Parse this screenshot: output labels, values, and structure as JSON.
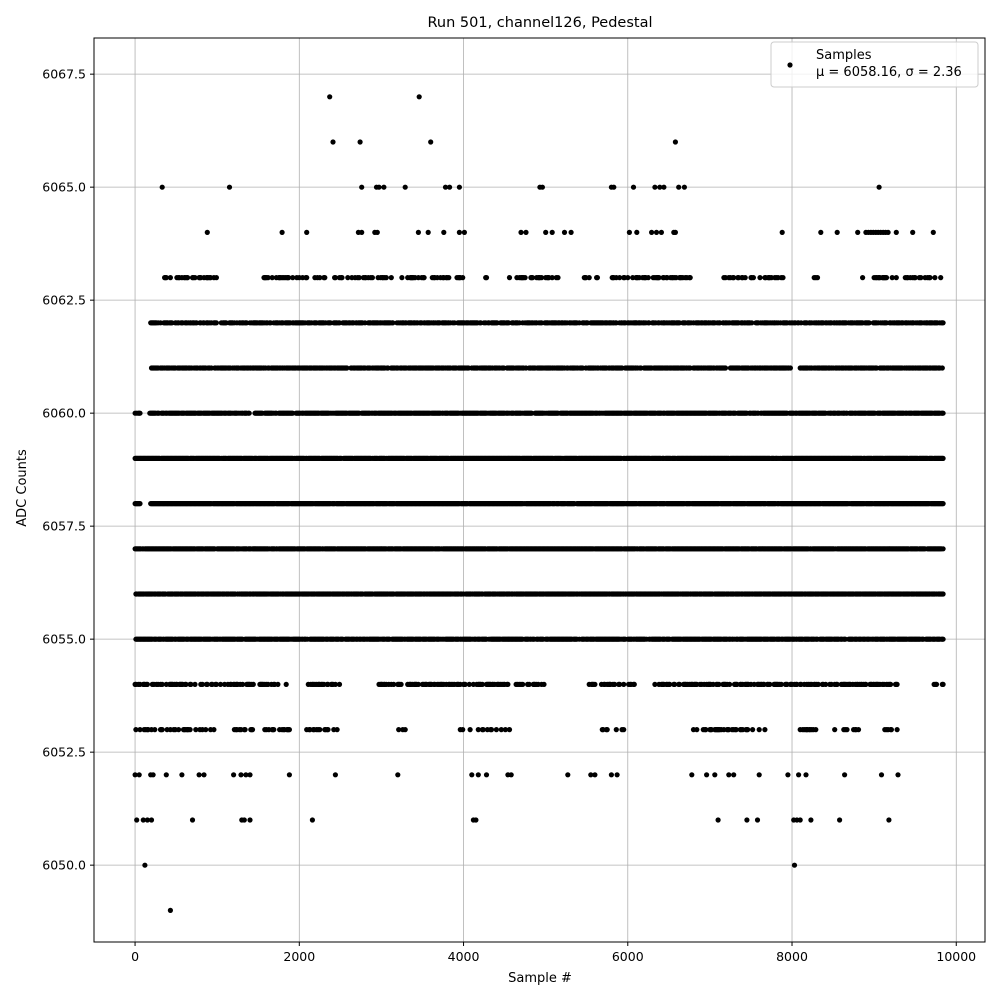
{
  "chart_data": {
    "type": "scatter",
    "title": "Run 501, channel126, Pedestal",
    "xlabel": "Sample #",
    "ylabel": "ADC Counts",
    "xlim": [
      -500,
      10350
    ],
    "ylim": [
      6048.3,
      6068.3
    ],
    "xticks": [
      0,
      2000,
      4000,
      6000,
      8000,
      10000
    ],
    "xtick_labels": [
      "0",
      "2000",
      "4000",
      "6000",
      "8000",
      "10000"
    ],
    "yticks": [
      6050.0,
      6052.5,
      6055.0,
      6057.5,
      6060.0,
      6062.5,
      6065.0,
      6067.5
    ],
    "ytick_labels": [
      "6050.0",
      "6052.5",
      "6055.0",
      "6057.5",
      "6060.0",
      "6062.5",
      "6065.0",
      "6067.5"
    ],
    "grid": true,
    "legend": {
      "placement": "top-right",
      "entries": [
        {
          "label_line1": "Samples",
          "label_line2": "μ = 6058.16, σ = 2.36"
        }
      ]
    },
    "colors": {
      "marker": "#000000",
      "grid": "#b0b0b0",
      "axes": "#000000"
    },
    "series": [
      {
        "name": "Samples",
        "levels": [
          {
            "y": 6049,
            "x": [
              430
            ]
          },
          {
            "y": 6050,
            "x": [
              120,
              8030
            ]
          },
          {
            "y": 6051,
            "x": [
              20,
              100,
              150,
              200,
              700,
              1300,
              1330,
              1400,
              2160,
              4120,
              4150,
              7100,
              7450,
              7580,
              8020,
              8060,
              8100,
              8230,
              8580,
              9180
            ]
          },
          {
            "y": 6052,
            "x": [
              0,
              50,
              190,
              220,
              380,
              570,
              780,
              840,
              1200,
              1290,
              1350,
              1400,
              1880,
              2440,
              3200,
              4100,
              4180,
              4280,
              4540,
              4580,
              5270,
              5550,
              5600,
              5800,
              5870,
              6780,
              6960,
              7060,
              7230,
              7290,
              7600,
              7950,
              8080,
              8170,
              8640,
              9090,
              9290
            ]
          }
        ],
        "bands": [
          {
            "y": 6053,
            "x_start": 0,
            "x_end": 2460,
            "density": 0.35,
            "gaps": [
              [
                1000,
                1180
              ],
              [
                1500,
                1550
              ],
              [
                1900,
                2050
              ]
            ]
          },
          {
            "y": 6053,
            "x_start": 3150,
            "x_end": 4600,
            "density": 0.2,
            "gaps": [
              [
                3300,
                3550
              ],
              [
                3650,
                3900
              ]
            ]
          },
          {
            "y": 6053,
            "x_start": 5250,
            "x_end": 5950,
            "density": 0.2,
            "gaps": [
              [
                5280,
                5420
              ],
              [
                5500,
                5680
              ]
            ]
          },
          {
            "y": 6053,
            "x_start": 6800,
            "x_end": 9300,
            "density": 0.3,
            "gaps": [
              [
                7700,
                7950
              ],
              [
                8300,
                8500
              ],
              [
                8850,
                9100
              ]
            ]
          },
          {
            "y": 6054,
            "x_start": 0,
            "x_end": 9840,
            "density": 0.45,
            "gaps": [
              [
                1850,
                2100
              ],
              [
                2500,
                2950
              ],
              [
                5000,
                5500
              ],
              [
                6100,
                6300
              ],
              [
                9300,
                9700
              ]
            ]
          },
          {
            "y": 6055,
            "x_start": 0,
            "x_end": 9840,
            "density": 0.85,
            "gaps": []
          },
          {
            "y": 6056,
            "x_start": 0,
            "x_end": 9840,
            "density": 0.9,
            "gaps": []
          },
          {
            "y": 6057,
            "x_start": 0,
            "x_end": 9840,
            "density": 0.95,
            "gaps": []
          },
          {
            "y": 6058,
            "x_start": 0,
            "x_end": 9840,
            "density": 0.95,
            "gaps": [
              [
                70,
                180
              ]
            ]
          },
          {
            "y": 6059,
            "x_start": 0,
            "x_end": 9840,
            "density": 0.95,
            "gaps": []
          },
          {
            "y": 6060,
            "x_start": 0,
            "x_end": 9840,
            "density": 0.85,
            "gaps": [
              [
                70,
                170
              ],
              [
                1400,
                1450
              ]
            ]
          },
          {
            "y": 6061,
            "x_start": 200,
            "x_end": 9840,
            "density": 0.75,
            "gaps": [
              [
                8000,
                8080
              ]
            ]
          },
          {
            "y": 6062,
            "x_start": 60,
            "x_end": 9840,
            "density": 0.65,
            "gaps": [
              [
                80,
                180
              ]
            ]
          },
          {
            "y": 6063,
            "x_start": 350,
            "x_end": 9840,
            "density": 0.35,
            "gaps": [
              [
                1000,
                1500
              ],
              [
                2100,
                2150
              ],
              [
                4000,
                4250
              ],
              [
                4300,
                4550
              ],
              [
                5200,
                5400
              ],
              [
                5650,
                5800
              ],
              [
                6800,
                7150
              ],
              [
                7900,
                8250
              ],
              [
                8350,
                8800
              ]
            ]
          }
        ],
        "points": [
          {
            "x": 330,
            "y": 6065
          },
          {
            "x": 1150,
            "y": 6065
          },
          {
            "x": 2760,
            "y": 6065
          },
          {
            "x": 2940,
            "y": 6065
          },
          {
            "x": 2970,
            "y": 6065
          },
          {
            "x": 3030,
            "y": 6065
          },
          {
            "x": 3290,
            "y": 6065
          },
          {
            "x": 3780,
            "y": 6065
          },
          {
            "x": 3830,
            "y": 6065
          },
          {
            "x": 3950,
            "y": 6065
          },
          {
            "x": 4930,
            "y": 6065
          },
          {
            "x": 4960,
            "y": 6065
          },
          {
            "x": 5800,
            "y": 6065
          },
          {
            "x": 5830,
            "y": 6065
          },
          {
            "x": 6070,
            "y": 6065
          },
          {
            "x": 6330,
            "y": 6065
          },
          {
            "x": 6390,
            "y": 6065
          },
          {
            "x": 6440,
            "y": 6065
          },
          {
            "x": 6620,
            "y": 6065
          },
          {
            "x": 6690,
            "y": 6065
          },
          {
            "x": 9060,
            "y": 6065
          },
          {
            "x": 2410,
            "y": 6066
          },
          {
            "x": 2740,
            "y": 6066
          },
          {
            "x": 3600,
            "y": 6066
          },
          {
            "x": 6580,
            "y": 6066
          },
          {
            "x": 2370,
            "y": 6067
          },
          {
            "x": 3460,
            "y": 6067
          },
          {
            "x": 880,
            "y": 6064
          },
          {
            "x": 1790,
            "y": 6064
          },
          {
            "x": 2090,
            "y": 6064
          },
          {
            "x": 2720,
            "y": 6064
          },
          {
            "x": 2760,
            "y": 6064
          },
          {
            "x": 2920,
            "y": 6064
          },
          {
            "x": 2950,
            "y": 6064
          },
          {
            "x": 3450,
            "y": 6064
          },
          {
            "x": 3570,
            "y": 6064
          },
          {
            "x": 3760,
            "y": 6064
          },
          {
            "x": 3950,
            "y": 6064
          },
          {
            "x": 4010,
            "y": 6064
          },
          {
            "x": 4700,
            "y": 6064
          },
          {
            "x": 4760,
            "y": 6064
          },
          {
            "x": 5000,
            "y": 6064
          },
          {
            "x": 5080,
            "y": 6064
          },
          {
            "x": 5230,
            "y": 6064
          },
          {
            "x": 5310,
            "y": 6064
          },
          {
            "x": 6020,
            "y": 6064
          },
          {
            "x": 6110,
            "y": 6064
          },
          {
            "x": 6290,
            "y": 6064
          },
          {
            "x": 6350,
            "y": 6064
          },
          {
            "x": 6410,
            "y": 6064
          },
          {
            "x": 6560,
            "y": 6064
          },
          {
            "x": 6580,
            "y": 6064
          },
          {
            "x": 7880,
            "y": 6064
          },
          {
            "x": 8350,
            "y": 6064
          },
          {
            "x": 8550,
            "y": 6064
          },
          {
            "x": 8800,
            "y": 6064
          },
          {
            "x": 8900,
            "y": 6064
          },
          {
            "x": 8930,
            "y": 6064
          },
          {
            "x": 8960,
            "y": 6064
          },
          {
            "x": 8990,
            "y": 6064
          },
          {
            "x": 9020,
            "y": 6064
          },
          {
            "x": 9050,
            "y": 6064
          },
          {
            "x": 9080,
            "y": 6064
          },
          {
            "x": 9110,
            "y": 6064
          },
          {
            "x": 9140,
            "y": 6064
          },
          {
            "x": 9170,
            "y": 6064
          },
          {
            "x": 9270,
            "y": 6064
          },
          {
            "x": 9470,
            "y": 6064
          },
          {
            "x": 9720,
            "y": 6064
          }
        ]
      }
    ]
  }
}
